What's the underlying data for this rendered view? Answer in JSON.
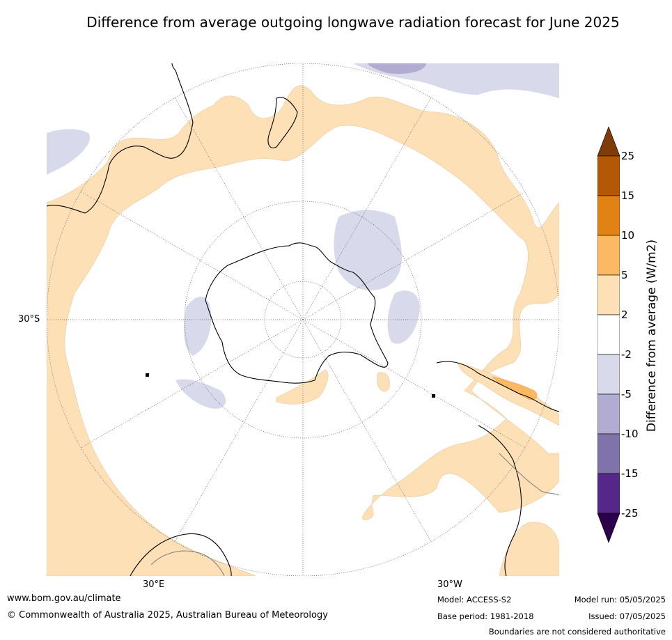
{
  "title": "Difference from average outgoing longwave radiation forecast for June 2025",
  "map": {
    "projection": "south-polar-stereographic",
    "lat_label": "30°S",
    "lon_labels": [
      "30°E",
      "30°W"
    ],
    "colors": {
      "land_outline": "#000000",
      "boundary_outline": "#7f7f7f",
      "graticule": "#555555",
      "positive_2_5": "#fde0b6",
      "positive_5_10": "#fdb863",
      "positive_10_15": "#e08214",
      "negative_2_5": "#d8daeb",
      "negative_5_10": "#b2abd2"
    }
  },
  "colorbar": {
    "label": "Difference from average (W/m2)",
    "ticks": [
      "25",
      "15",
      "10",
      "5",
      "2",
      "-2",
      "-5",
      "-10",
      "-15",
      "-25"
    ],
    "colors": [
      "#7f3b08",
      "#b35806",
      "#e08214",
      "#fdb863",
      "#fee0b6",
      "#ffffff",
      "#d8daeb",
      "#b2abd2",
      "#8073ac",
      "#542788",
      "#2d004b"
    ]
  },
  "footer": {
    "site": "www.bom.gov.au/climate",
    "copyright": "© Commonwealth of Australia 2025, Australian Bureau of Meteorology",
    "model": "Model: ACCESS-S2",
    "base_period": "Base period: 1981-2018",
    "model_run": "Model run: 05/05/2025",
    "issued": "Issued: 07/05/2025",
    "boundaries": "Boundaries are not considered authoritative"
  }
}
